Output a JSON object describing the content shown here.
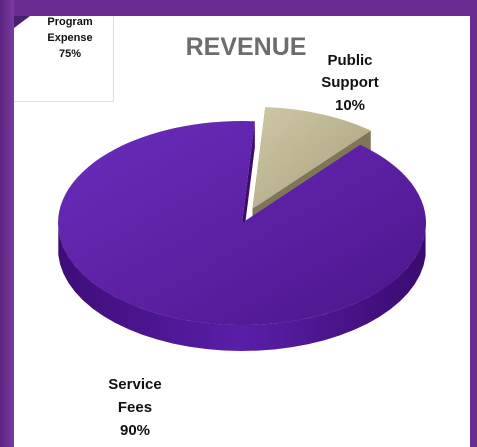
{
  "inset": {
    "label_lines": [
      "Program",
      "Expense",
      "75%"
    ]
  },
  "chart_data": {
    "type": "pie",
    "title": "REVENUE",
    "slices": [
      {
        "label_lines": [
          "Public",
          "Support",
          "10%"
        ],
        "value": 10,
        "color": "#b6ae8c",
        "exploded": true
      },
      {
        "label_lines": [
          "Service",
          "Fees",
          "90%"
        ],
        "value": 90,
        "color": "#5b1fa0",
        "exploded": false
      }
    ],
    "style": "3d-exploded"
  },
  "colors": {
    "background": "#6b2c91",
    "panel": "#ffffff",
    "title": "#6d6d6d"
  }
}
